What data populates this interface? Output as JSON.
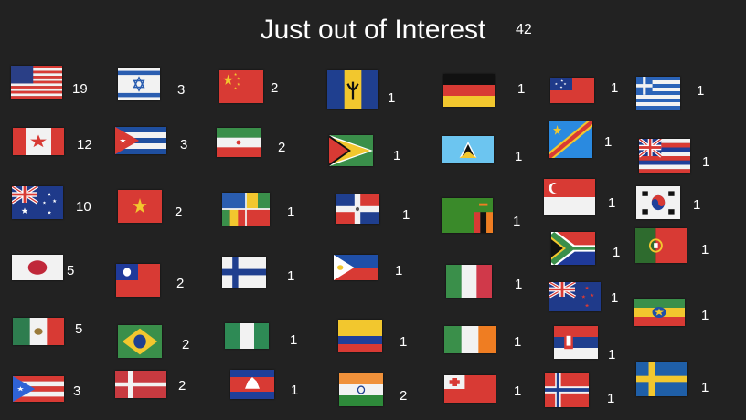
{
  "slide": {
    "title": "Just out of Interest",
    "total": "42"
  },
  "flags": [
    {
      "icon": "usa-flag-icon",
      "count": "19"
    },
    {
      "icon": "canada-flag-icon",
      "count": "12"
    },
    {
      "icon": "australia-flag-icon",
      "count": "10"
    },
    {
      "icon": "japan-flag-icon",
      "count": "5"
    },
    {
      "icon": "mexico-flag-icon",
      "count": "5"
    },
    {
      "icon": "puerto-rico-flag-icon",
      "count": "3"
    },
    {
      "icon": "israel-flag-icon",
      "count": "3"
    },
    {
      "icon": "cuba-flag-icon",
      "count": "3"
    },
    {
      "icon": "vietnam-flag-icon",
      "count": "2"
    },
    {
      "icon": "taiwan-flag-icon",
      "count": "2"
    },
    {
      "icon": "brazil-flag-icon",
      "count": "2"
    },
    {
      "icon": "denmark-flag-icon",
      "count": "2"
    },
    {
      "icon": "china-flag-icon",
      "count": "2"
    },
    {
      "icon": "iran-flag-icon",
      "count": "2"
    },
    {
      "icon": "acadiana-flag-icon",
      "count": "1"
    },
    {
      "icon": "finland-flag-icon",
      "count": "1"
    },
    {
      "icon": "nigeria-flag-icon",
      "count": "1"
    },
    {
      "icon": "cambodia-flag-icon",
      "count": "1"
    },
    {
      "icon": "barbados-flag-icon",
      "count": "1"
    },
    {
      "icon": "guyana-flag-icon",
      "count": "1"
    },
    {
      "icon": "dominican-republic-flag-icon",
      "count": "1"
    },
    {
      "icon": "philippines-flag-icon",
      "count": "1"
    },
    {
      "icon": "colombia-flag-icon",
      "count": "1"
    },
    {
      "icon": "india-flag-icon",
      "count": "2"
    },
    {
      "icon": "germany-flag-icon",
      "count": "1"
    },
    {
      "icon": "saint-lucia-flag-icon",
      "count": "1"
    },
    {
      "icon": "zambia-flag-icon",
      "count": "1"
    },
    {
      "icon": "italy-flag-icon",
      "count": "1"
    },
    {
      "icon": "ireland-flag-icon",
      "count": "1"
    },
    {
      "icon": "tonga-flag-icon",
      "count": "1"
    },
    {
      "icon": "samoa-flag-icon",
      "count": "1"
    },
    {
      "icon": "dr-congo-flag-icon",
      "count": "1"
    },
    {
      "icon": "singapore-flag-icon",
      "count": "1"
    },
    {
      "icon": "south-africa-flag-icon",
      "count": "1"
    },
    {
      "icon": "new-zealand-flag-icon",
      "count": "1"
    },
    {
      "icon": "serbia-flag-icon",
      "count": "1"
    },
    {
      "icon": "norway-flag-icon",
      "count": "1"
    },
    {
      "icon": "greece-flag-icon",
      "count": "1"
    },
    {
      "icon": "hawaii-flag-icon",
      "count": "1"
    },
    {
      "icon": "south-korea-flag-icon",
      "count": "1"
    },
    {
      "icon": "portugal-flag-icon",
      "count": "1"
    },
    {
      "icon": "ethiopia-flag-icon",
      "count": "1"
    },
    {
      "icon": "sweden-flag-icon",
      "count": "1"
    }
  ]
}
